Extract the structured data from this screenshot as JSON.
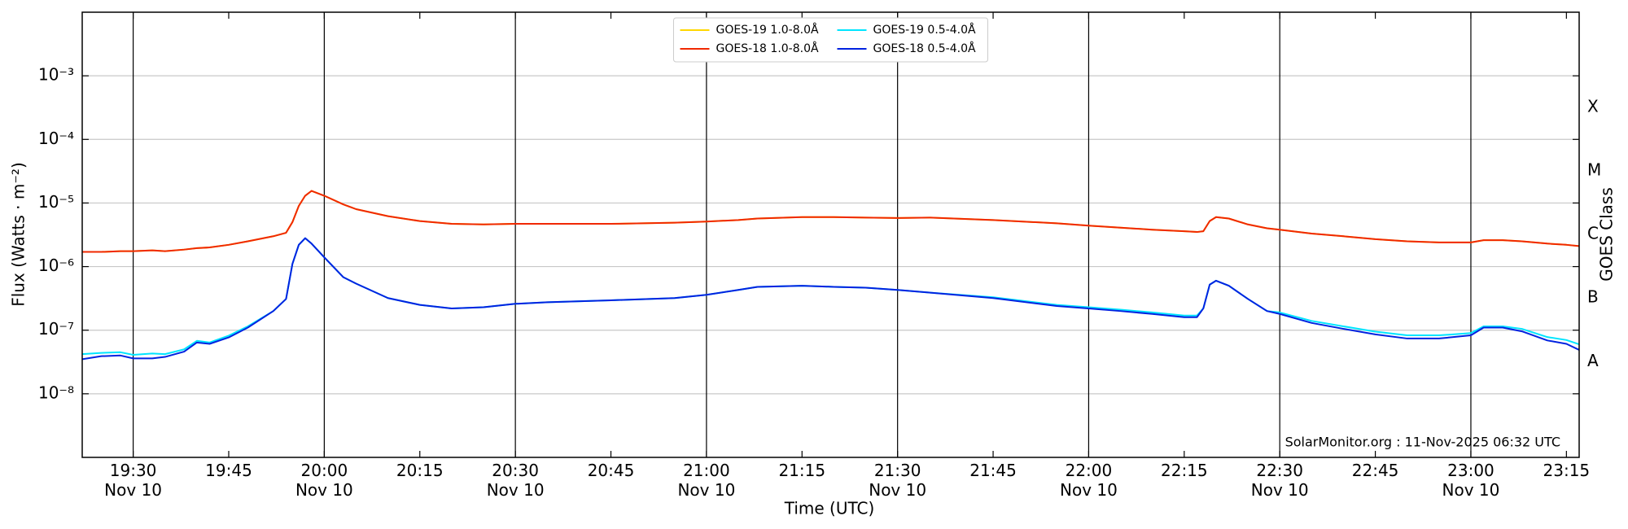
{
  "chart_data": {
    "type": "line",
    "x_label": "Time (UTC)",
    "y_label": "Flux (Watts · m⁻²)",
    "y2_label": "GOES Class",
    "annotation": "SolarMonitor.org : 11-Nov-2025 06:32 UTC",
    "log_y": true,
    "grid": true,
    "legend_loc": "upper center",
    "legend_columns": 2,
    "xlim": [
      "19:22",
      "23:17"
    ],
    "xticks": [
      {
        "value": "19:30",
        "label": "19:30\nNov 10"
      },
      "19:45",
      {
        "value": "20:00",
        "label": "20:00\nNov 10"
      },
      "20:15",
      {
        "value": "20:30",
        "label": "20:30\nNov 10"
      },
      "20:45",
      {
        "value": "21:00",
        "label": "21:00\nNov 10"
      },
      "21:15",
      {
        "value": "21:30",
        "label": "21:30\nNov 10"
      },
      "21:45",
      {
        "value": "22:00",
        "label": "22:00\nNov 10"
      },
      "22:15",
      {
        "value": "22:30",
        "label": "22:30\nNov 10"
      },
      "22:45",
      {
        "value": "23:00",
        "label": "23:00\nNov 10"
      },
      "23:15"
    ],
    "ylim": [
      1e-09,
      0.01
    ],
    "yticks": [
      {
        "value": 1e-08,
        "label": "10⁻⁸"
      },
      {
        "value": 1e-07,
        "label": "10⁻⁷"
      },
      {
        "value": 1e-06,
        "label": "10⁻⁶"
      },
      {
        "value": 1e-05,
        "label": "10⁻⁵"
      },
      {
        "value": 0.0001,
        "label": "10⁻⁴"
      },
      {
        "value": 0.001,
        "label": "10⁻³"
      }
    ],
    "y2lim": [
      1e-09,
      0.01
    ],
    "y2ticks": [
      {
        "value": 3.2e-08,
        "label": "A"
      },
      {
        "value": 3.2e-07,
        "label": "B"
      },
      {
        "value": 3.2e-06,
        "label": "C"
      },
      {
        "value": 3.2e-05,
        "label": "M"
      },
      {
        "value": 0.00032,
        "label": "X"
      }
    ],
    "x": [
      "19:22",
      "19:25",
      "19:28",
      "19:30",
      "19:33",
      "19:35",
      "19:38",
      "19:40",
      "19:42",
      "19:45",
      "19:48",
      "19:52",
      "19:54",
      "19:55",
      "19:56",
      "19:57",
      "19:58",
      "20:00",
      "20:03",
      "20:05",
      "20:10",
      "20:15",
      "20:20",
      "20:25",
      "20:30",
      "20:35",
      "20:45",
      "20:55",
      "21:00",
      "21:05",
      "21:08",
      "21:15",
      "21:20",
      "21:25",
      "21:30",
      "21:35",
      "21:45",
      "21:55",
      "22:00",
      "22:05",
      "22:10",
      "22:15",
      "22:17",
      "22:18",
      "22:19",
      "22:20",
      "22:22",
      "22:25",
      "22:28",
      "22:30",
      "22:35",
      "22:40",
      "22:45",
      "22:50",
      "22:55",
      "23:00",
      "23:02",
      "23:05",
      "23:08",
      "23:12",
      "23:15",
      "23:17"
    ],
    "series": [
      {
        "name": "GOES-19 1.0-8.0Å",
        "color": "#ffd700",
        "values": [
          1.7e-06,
          1.7e-06,
          1.75e-06,
          1.75e-06,
          1.8e-06,
          1.75e-06,
          1.85e-06,
          1.95e-06,
          2e-06,
          2.2e-06,
          2.5e-06,
          3e-06,
          3.4e-06,
          5e-06,
          9e-06,
          1.3e-05,
          1.55e-05,
          1.3e-05,
          9.5e-06,
          8e-06,
          6.2e-06,
          5.2e-06,
          4.7e-06,
          4.6e-06,
          4.7e-06,
          4.7e-06,
          4.7e-06,
          4.9e-06,
          5.1e-06,
          5.4e-06,
          5.7e-06,
          6e-06,
          6e-06,
          5.9e-06,
          5.8e-06,
          5.9e-06,
          5.4e-06,
          4.8e-06,
          4.4e-06,
          4.1e-06,
          3.8e-06,
          3.6e-06,
          3.5e-06,
          3.6e-06,
          5.2e-06,
          6e-06,
          5.7e-06,
          4.6e-06,
          4e-06,
          3.8e-06,
          3.3e-06,
          3e-06,
          2.7e-06,
          2.5e-06,
          2.4e-06,
          2.4e-06,
          2.6e-06,
          2.6e-06,
          2.5e-06,
          2.3e-06,
          2.2e-06,
          2.1e-06
        ]
      },
      {
        "name": "GOES-18 1.0-8.0Å",
        "color": "#f02800",
        "values": [
          1.7e-06,
          1.7e-06,
          1.75e-06,
          1.75e-06,
          1.8e-06,
          1.75e-06,
          1.85e-06,
          1.95e-06,
          2e-06,
          2.2e-06,
          2.5e-06,
          3e-06,
          3.4e-06,
          5e-06,
          9e-06,
          1.3e-05,
          1.55e-05,
          1.3e-05,
          9.5e-06,
          8e-06,
          6.2e-06,
          5.2e-06,
          4.7e-06,
          4.6e-06,
          4.7e-06,
          4.7e-06,
          4.7e-06,
          4.9e-06,
          5.1e-06,
          5.4e-06,
          5.7e-06,
          6e-06,
          6e-06,
          5.9e-06,
          5.8e-06,
          5.9e-06,
          5.4e-06,
          4.8e-06,
          4.4e-06,
          4.1e-06,
          3.8e-06,
          3.6e-06,
          3.5e-06,
          3.6e-06,
          5.2e-06,
          6e-06,
          5.7e-06,
          4.6e-06,
          4e-06,
          3.8e-06,
          3.3e-06,
          3e-06,
          2.7e-06,
          2.5e-06,
          2.4e-06,
          2.4e-06,
          2.6e-06,
          2.6e-06,
          2.5e-06,
          2.3e-06,
          2.2e-06,
          2.1e-06
        ]
      },
      {
        "name": "GOES-19 0.5-4.0Å",
        "color": "#00e5ff",
        "values": [
          4.2e-08,
          4.4e-08,
          4.5e-08,
          4.1e-08,
          4.3e-08,
          4.2e-08,
          5e-08,
          6.8e-08,
          6.4e-08,
          8.2e-08,
          1.15e-07,
          2e-07,
          3.1e-07,
          1.1e-06,
          2.2e-06,
          2.8e-06,
          2.3e-06,
          1.4e-06,
          6.8e-07,
          5.4e-07,
          3.2e-07,
          2.5e-07,
          2.2e-07,
          2.3e-07,
          2.6e-07,
          2.75e-07,
          2.95e-07,
          3.2e-07,
          3.6e-07,
          4.3e-07,
          4.8e-07,
          5e-07,
          4.8e-07,
          4.65e-07,
          4.3e-07,
          3.9e-07,
          3.3e-07,
          2.5e-07,
          2.3e-07,
          2.1e-07,
          1.9e-07,
          1.7e-07,
          1.7e-07,
          2.2e-07,
          5.2e-07,
          6e-07,
          5e-07,
          3.1e-07,
          2e-07,
          1.9e-07,
          1.4e-07,
          1.15e-07,
          9.5e-08,
          8.3e-08,
          8.3e-08,
          9e-08,
          1.15e-07,
          1.15e-07,
          1.05e-07,
          7.8e-08,
          7e-08,
          6e-08
        ]
      },
      {
        "name": "GOES-18 0.5-4.0Å",
        "color": "#0022e0",
        "values": [
          3.5e-08,
          3.9e-08,
          4e-08,
          3.6e-08,
          3.6e-08,
          3.8e-08,
          4.6e-08,
          6.4e-08,
          6.1e-08,
          7.7e-08,
          1.1e-07,
          2e-07,
          3.1e-07,
          1.1e-06,
          2.2e-06,
          2.8e-06,
          2.3e-06,
          1.4e-06,
          6.8e-07,
          5.4e-07,
          3.2e-07,
          2.5e-07,
          2.2e-07,
          2.3e-07,
          2.6e-07,
          2.75e-07,
          2.95e-07,
          3.2e-07,
          3.6e-07,
          4.3e-07,
          4.8e-07,
          5e-07,
          4.8e-07,
          4.65e-07,
          4.3e-07,
          3.9e-07,
          3.2e-07,
          2.4e-07,
          2.2e-07,
          2e-07,
          1.8e-07,
          1.6e-07,
          1.6e-07,
          2.2e-07,
          5.2e-07,
          6e-07,
          5e-07,
          3.1e-07,
          2e-07,
          1.8e-07,
          1.3e-07,
          1.05e-07,
          8.6e-08,
          7.4e-08,
          7.4e-08,
          8.3e-08,
          1.1e-07,
          1.1e-07,
          9.6e-08,
          6.9e-08,
          6.1e-08,
          4.9e-08
        ]
      }
    ]
  }
}
